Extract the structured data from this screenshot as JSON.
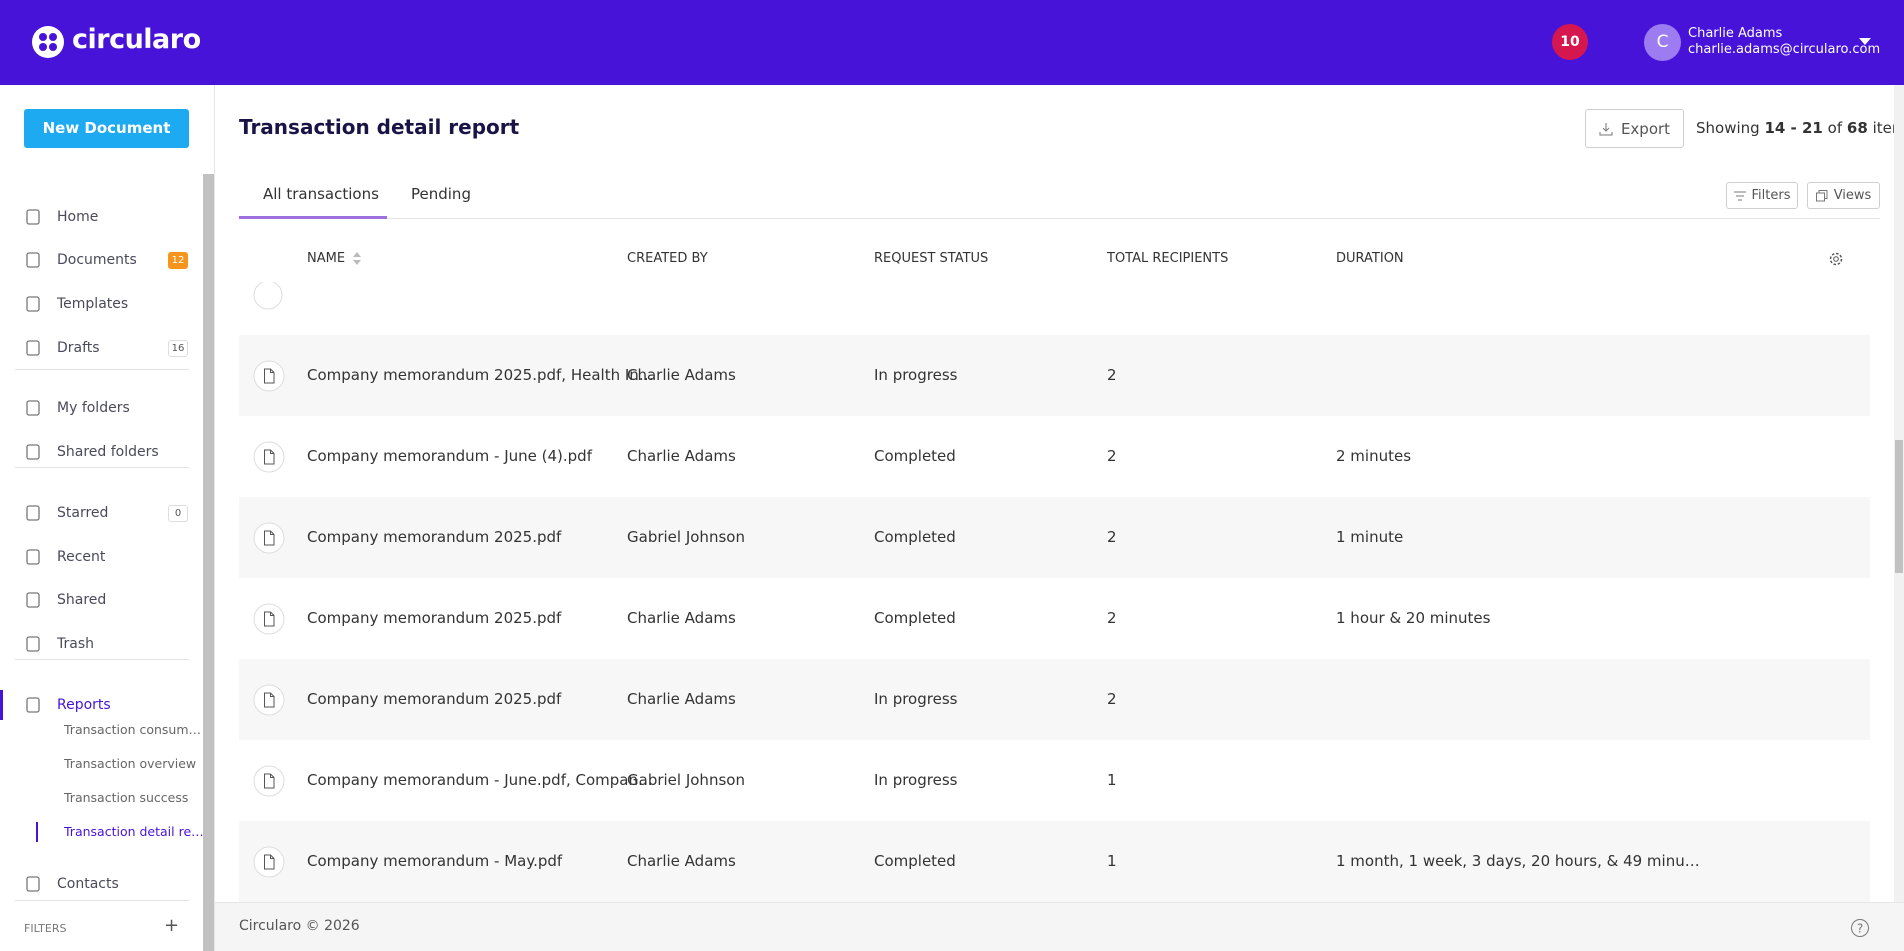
{
  "header": {
    "logo": "circularo",
    "notifications": "10",
    "user": {
      "initial": "C",
      "name": "Charlie Adams",
      "email": "charlie.adams@circularo.com"
    }
  },
  "sidebar": {
    "new_document": "New Document",
    "nav": [
      {
        "label": "Home"
      },
      {
        "label": "Documents",
        "count": "12"
      },
      {
        "label": "Templates"
      },
      {
        "label": "Drafts",
        "count": "16"
      },
      {
        "label": "My folders"
      },
      {
        "label": "Shared folders"
      },
      {
        "label": "Starred",
        "count": "0"
      },
      {
        "label": "Recent"
      },
      {
        "label": "Shared"
      },
      {
        "label": "Trash"
      },
      {
        "label": "Reports"
      },
      {
        "label": "Contacts"
      }
    ],
    "reports": [
      "Transaction consum…",
      "Transaction overview",
      "Transaction success",
      "Transaction detail re…"
    ],
    "filters": "FILTERS"
  },
  "main": {
    "title": "Transaction detail report",
    "export": "Export",
    "showing": {
      "label": "Showing",
      "range": "14 - 21",
      "of": "of",
      "total": "68",
      "unit": "items"
    },
    "tabs": [
      "All transactions",
      "Pending"
    ],
    "filters": "Filters",
    "views": "Views",
    "columns": [
      "NAME",
      "CREATED BY",
      "REQUEST STATUS",
      "TOTAL RECIPIENTS",
      "DURATION"
    ],
    "rows": [
      {
        "name": "Company memorandum 2025.pdf, Health In…",
        "created_by": "Charlie Adams",
        "status": "In progress",
        "recipients": 2
      },
      {
        "name": "Company memorandum - June (4).pdf",
        "created_by": "Charlie Adams",
        "status": "Completed",
        "recipients": 2,
        "duration": "2 minutes"
      },
      {
        "name": "Company memorandum 2025.pdf",
        "created_by": "Gabriel Johnson",
        "status": "Completed",
        "recipients": 2,
        "duration": "1 minute"
      },
      {
        "name": "Company memorandum 2025.pdf",
        "created_by": "Charlie Adams",
        "status": "Completed",
        "recipients": 2,
        "duration": "1 hour & 20 minutes"
      },
      {
        "name": "Company memorandum 2025.pdf",
        "created_by": "Charlie Adams",
        "status": "In progress",
        "recipients": 2
      },
      {
        "name": "Company memorandum - June.pdf, Compan…",
        "created_by": "Gabriel Johnson",
        "status": "In progress",
        "recipients": 1
      },
      {
        "name": "Company memorandum - May.pdf",
        "created_by": "Charlie Adams",
        "status": "Completed",
        "recipients": 1,
        "duration": "1 month, 1 week, 3 days, 20 hours, & 49 minu…"
      }
    ]
  },
  "footer": {
    "copyright": "Circularo © 2026"
  }
}
